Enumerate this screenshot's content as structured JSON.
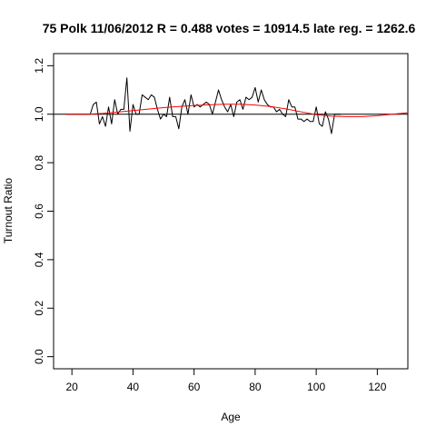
{
  "chart_data": {
    "type": "line",
    "title": "75 Polk 11/06/2012 R = 0.488 votes = 10914.5 late reg. = 1262.6",
    "xlabel": "Age",
    "ylabel": "Turnout Ratio",
    "xlim": [
      14,
      130
    ],
    "ylim": [
      -0.05,
      1.25
    ],
    "x_ticks": [
      20,
      40,
      60,
      80,
      100,
      120
    ],
    "x_tick_labels": [
      "20",
      "40",
      "60",
      "80",
      "100",
      "120"
    ],
    "y_ticks": [
      0.0,
      0.2,
      0.4,
      0.6,
      0.8,
      1.0,
      1.2
    ],
    "y_tick_labels": [
      "0.0",
      "0.2",
      "0.4",
      "0.6",
      "0.8",
      "1.0",
      "1.2"
    ],
    "reference_line_y": 1.0,
    "grid": false,
    "colors": {
      "observed": "#000000",
      "fit": "#ff0000",
      "reference": "#000000"
    },
    "series": [
      {
        "style": "observed",
        "x": [
          18,
          19,
          20,
          21,
          22,
          23,
          24,
          25,
          26,
          27,
          28,
          29,
          30,
          31,
          32,
          33,
          34,
          35,
          36,
          37,
          38,
          39,
          40,
          41,
          42,
          43,
          44,
          45,
          46,
          47,
          48,
          49,
          50,
          51,
          52,
          53,
          54,
          55,
          56,
          57,
          58,
          59,
          60,
          61,
          62,
          63,
          64,
          65,
          66,
          67,
          68,
          69,
          70,
          71,
          72,
          73,
          74,
          75,
          76,
          77,
          78,
          79,
          80,
          81,
          82,
          83,
          84,
          85,
          86,
          87,
          88,
          89,
          90,
          91,
          92,
          93,
          94,
          95,
          96,
          97,
          98,
          99,
          100,
          101,
          102,
          103,
          104,
          105,
          106,
          107,
          108
        ],
        "y": [
          1.0,
          1.0,
          1.0,
          1.0,
          1.0,
          1.0,
          1.0,
          1.0,
          1.0,
          1.04,
          1.05,
          0.96,
          0.99,
          0.95,
          1.03,
          0.96,
          1.06,
          1.0,
          1.02,
          1.02,
          1.15,
          0.93,
          1.04,
          1.0,
          1.0,
          1.08,
          1.07,
          1.06,
          1.08,
          1.07,
          1.02,
          0.98,
          1.0,
          0.99,
          1.07,
          0.99,
          0.99,
          0.94,
          1.03,
          1.06,
          1.0,
          1.08,
          1.03,
          1.04,
          1.03,
          1.04,
          1.05,
          1.04,
          1.0,
          1.05,
          1.1,
          1.06,
          1.03,
          1.01,
          1.04,
          0.99,
          1.05,
          1.06,
          1.02,
          1.07,
          1.06,
          1.07,
          1.11,
          1.05,
          1.1,
          1.06,
          1.04,
          1.03,
          1.03,
          1.01,
          1.02,
          1.0,
          0.99,
          1.06,
          1.03,
          1.03,
          0.98,
          0.98,
          0.97,
          0.98,
          0.97,
          0.97,
          1.03,
          0.96,
          0.95,
          1.01,
          0.98,
          0.92,
          1.0,
          1.0,
          1.0
        ]
      },
      {
        "style": "fit",
        "x": [
          18,
          25,
          30,
          35,
          40,
          45,
          50,
          55,
          60,
          65,
          70,
          75,
          80,
          85,
          90,
          95,
          100,
          105,
          110,
          115,
          120,
          125,
          130
        ],
        "y": [
          1.0,
          1.0,
          1.003,
          1.009,
          1.015,
          1.021,
          1.027,
          1.032,
          1.036,
          1.039,
          1.041,
          1.041,
          1.038,
          1.032,
          1.022,
          1.01,
          0.998,
          0.992,
          0.99,
          0.99,
          0.994,
          1.0,
          1.006
        ]
      }
    ]
  }
}
